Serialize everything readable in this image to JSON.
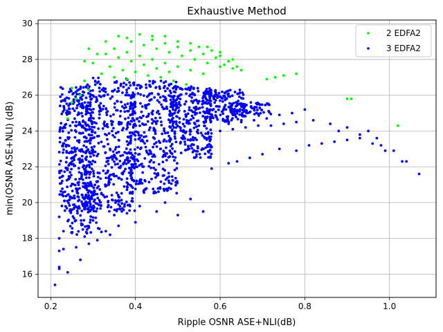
{
  "chart_data": {
    "type": "scatter",
    "title": "Exhaustive Method",
    "xlabel": "Ripple OSNR ASE+NLI(dB)",
    "ylabel": "min(OSNR ASE+NLI) (dB)",
    "xlim": [
      0.17,
      1.11
    ],
    "ylim": [
      14.7,
      30.2
    ],
    "xticks": [
      0.2,
      0.4,
      0.6,
      0.8,
      1.0
    ],
    "yticks": [
      16,
      18,
      20,
      22,
      24,
      26,
      28,
      30
    ],
    "xtick_labels": [
      "0.2",
      "0.4",
      "0.6",
      "0.8",
      "1.0"
    ],
    "ytick_labels": [
      "16",
      "18",
      "20",
      "22",
      "24",
      "26",
      "28",
      "30"
    ],
    "grid": true,
    "legend_position": "top-right",
    "series": [
      {
        "name": "2 EDFA2",
        "color": "#00ff00",
        "points": [
          [
            0.27,
            26.0
          ],
          [
            0.29,
            26.3
          ],
          [
            0.26,
            25.8
          ],
          [
            0.28,
            27.9
          ],
          [
            0.29,
            28.6
          ],
          [
            0.31,
            28.3
          ],
          [
            0.33,
            29.0
          ],
          [
            0.36,
            29.3
          ],
          [
            0.38,
            29.2
          ],
          [
            0.41,
            29.4
          ],
          [
            0.44,
            29.3
          ],
          [
            0.47,
            29.3
          ],
          [
            0.5,
            29.0
          ],
          [
            0.53,
            28.9
          ],
          [
            0.55,
            28.7
          ],
          [
            0.58,
            28.5
          ],
          [
            0.6,
            28.2
          ],
          [
            0.62,
            27.9
          ],
          [
            0.64,
            27.6
          ],
          [
            0.65,
            27.4
          ],
          [
            0.3,
            27.8
          ],
          [
            0.34,
            27.6
          ],
          [
            0.37,
            27.4
          ],
          [
            0.4,
            27.3
          ],
          [
            0.43,
            27.1
          ],
          [
            0.46,
            27.0
          ],
          [
            0.49,
            26.8
          ],
          [
            0.52,
            26.6
          ],
          [
            0.33,
            28.3
          ],
          [
            0.36,
            28.1
          ],
          [
            0.39,
            27.9
          ],
          [
            0.42,
            27.7
          ],
          [
            0.45,
            27.5
          ],
          [
            0.48,
            27.3
          ],
          [
            0.35,
            28.6
          ],
          [
            0.38,
            28.4
          ],
          [
            0.41,
            28.2
          ],
          [
            0.44,
            28.0
          ],
          [
            0.47,
            27.8
          ],
          [
            0.5,
            27.6
          ],
          [
            0.53,
            27.4
          ],
          [
            0.56,
            27.2
          ],
          [
            0.39,
            29.0
          ],
          [
            0.42,
            28.8
          ],
          [
            0.45,
            28.6
          ],
          [
            0.48,
            28.4
          ],
          [
            0.51,
            28.2
          ],
          [
            0.54,
            28.0
          ],
          [
            0.57,
            27.8
          ],
          [
            0.6,
            27.6
          ],
          [
            0.44,
            29.1
          ],
          [
            0.47,
            28.9
          ],
          [
            0.5,
            28.7
          ],
          [
            0.53,
            28.5
          ],
          [
            0.56,
            28.3
          ],
          [
            0.59,
            28.1
          ],
          [
            0.62,
            27.9
          ],
          [
            0.57,
            28.7
          ],
          [
            0.6,
            28.4
          ],
          [
            0.63,
            28.0
          ],
          [
            0.61,
            27.7
          ],
          [
            0.63,
            27.5
          ],
          [
            0.71,
            26.9
          ],
          [
            0.73,
            27.0
          ],
          [
            0.75,
            27.1
          ],
          [
            0.78,
            27.2
          ],
          [
            0.9,
            25.8
          ],
          [
            0.91,
            25.8
          ],
          [
            1.02,
            24.3
          ],
          [
            0.25,
            25.6
          ],
          [
            0.24,
            24.7
          ],
          [
            0.25,
            26.4
          ],
          [
            0.28,
            26.8
          ],
          [
            0.32,
            27.2
          ],
          [
            0.35,
            27.0
          ],
          [
            0.38,
            26.9
          ]
        ]
      },
      {
        "name": "3 EDFA2",
        "color": "#0000ff",
        "points": [
          [
            0.21,
            15.4
          ],
          [
            0.22,
            16.3
          ],
          [
            0.22,
            16.4
          ],
          [
            0.24,
            16.1
          ],
          [
            0.27,
            16.8
          ],
          [
            0.22,
            17.3
          ],
          [
            0.23,
            17.4
          ],
          [
            0.26,
            17.5
          ],
          [
            0.29,
            17.7
          ],
          [
            0.22,
            18.0
          ],
          [
            0.23,
            18.4
          ],
          [
            0.25,
            18.3
          ],
          [
            0.28,
            18.1
          ],
          [
            0.31,
            17.9
          ],
          [
            0.34,
            18.2
          ],
          [
            0.4,
            18.9
          ],
          [
            0.29,
            18.6
          ],
          [
            0.33,
            18.4
          ],
          [
            0.36,
            18.7
          ],
          [
            0.38,
            19.4
          ],
          [
            0.45,
            19.5
          ],
          [
            0.5,
            19.3
          ],
          [
            0.56,
            19.5
          ],
          [
            0.22,
            19.2
          ],
          [
            0.25,
            19.6
          ],
          [
            0.3,
            19.0
          ],
          [
            0.35,
            19.3
          ],
          [
            0.41,
            19.8
          ],
          [
            0.47,
            20.0
          ],
          [
            0.53,
            20.2
          ],
          [
            0.58,
            21.9
          ],
          [
            0.62,
            22.2
          ],
          [
            0.64,
            22.3
          ],
          [
            0.67,
            22.5
          ],
          [
            0.7,
            22.7
          ],
          [
            0.74,
            23.0
          ],
          [
            0.78,
            22.9
          ],
          [
            0.81,
            23.2
          ],
          [
            0.84,
            23.3
          ],
          [
            0.87,
            23.4
          ],
          [
            0.9,
            23.5
          ],
          [
            0.93,
            23.6
          ],
          [
            0.96,
            23.3
          ],
          [
            0.99,
            22.9
          ],
          [
            1.01,
            22.9
          ],
          [
            1.03,
            22.3
          ],
          [
            1.04,
            22.3
          ],
          [
            1.07,
            21.6
          ],
          [
            0.93,
            23.8
          ],
          [
            0.95,
            24.0
          ],
          [
            0.97,
            23.6
          ],
          [
            0.98,
            23.2
          ],
          [
            0.88,
            24.0
          ],
          [
            0.9,
            24.2
          ],
          [
            0.86,
            24.4
          ],
          [
            0.82,
            24.6
          ],
          [
            0.78,
            24.5
          ],
          [
            0.75,
            24.4
          ],
          [
            0.72,
            24.3
          ],
          [
            0.69,
            24.3
          ],
          [
            0.66,
            24.2
          ],
          [
            0.63,
            24.1
          ],
          [
            0.6,
            24.0
          ],
          [
            0.8,
            25.2
          ],
          [
            0.77,
            25.0
          ],
          [
            0.74,
            24.9
          ],
          [
            0.71,
            24.7
          ],
          [
            0.68,
            24.6
          ],
          [
            0.65,
            24.5
          ],
          [
            0.62,
            24.4
          ]
        ],
        "clusters": [
          {
            "x": [
              0.22,
              0.3
            ],
            "y": [
              19.5,
              26.5
            ],
            "n": 380
          },
          {
            "x": [
              0.28,
              0.4
            ],
            "y": [
              19.5,
              27.0
            ],
            "n": 420
          },
          {
            "x": [
              0.38,
              0.5
            ],
            "y": [
              20.5,
              26.8
            ],
            "n": 380
          },
          {
            "x": [
              0.48,
              0.58
            ],
            "y": [
              22.5,
              26.5
            ],
            "n": 260
          },
          {
            "x": [
              0.56,
              0.66
            ],
            "y": [
              24.5,
              26.3
            ],
            "n": 160
          },
          {
            "x": [
              0.62,
              0.72
            ],
            "y": [
              24.8,
              25.6
            ],
            "n": 70
          },
          {
            "x": [
              0.24,
              0.32
            ],
            "y": [
              18.2,
              21.0
            ],
            "n": 90
          }
        ]
      }
    ]
  }
}
